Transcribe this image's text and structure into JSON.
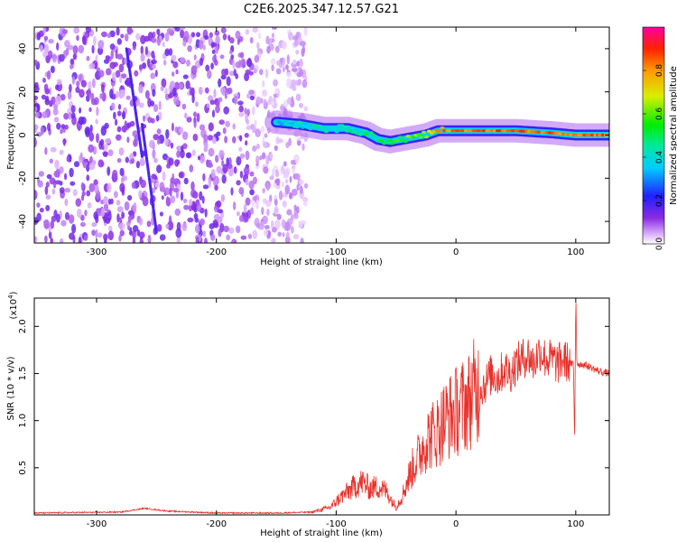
{
  "title": "C2E6.2025.347.12.57.G21",
  "chart_data": [
    {
      "type": "heatmap",
      "xlabel": "Height of straight line (km)",
      "ylabel": "Frequency (Hz)",
      "xlim": [
        -352,
        128
      ],
      "ylim": [
        -50,
        50
      ],
      "xticks": [
        -300,
        -200,
        -100,
        0,
        100
      ],
      "yticks": [
        -40,
        -20,
        0,
        20,
        40
      ],
      "colorbar": {
        "label": "Normalized spectral amplitude",
        "range": [
          0,
          1
        ],
        "ticks": [
          0.0,
          0.2,
          0.4,
          0.6,
          0.8
        ]
      },
      "noise_region_x": [
        -352,
        -150
      ],
      "signal_trace": {
        "x": [
          -150,
          -130,
          -110,
          -90,
          -75,
          -65,
          -55,
          -45,
          -35,
          -25,
          -15,
          0,
          20,
          50,
          80,
          100,
          128
        ],
        "frequency": [
          6,
          5,
          3,
          3,
          1,
          -2,
          -3,
          -2,
          -1,
          0,
          2,
          2,
          2,
          2,
          1,
          0,
          0
        ],
        "amplitude": [
          0.35,
          0.4,
          0.4,
          0.45,
          0.5,
          0.45,
          0.5,
          0.55,
          0.6,
          0.65,
          0.8,
          0.85,
          0.85,
          0.85,
          0.85,
          0.85,
          0.85
        ]
      }
    },
    {
      "type": "line",
      "xlabel": "Height of straight line (km)",
      "ylabel": "SNR (10 * v/v)",
      "y_multiplier": "(x10",
      "y_multiplier_exp": "4",
      "y_multiplier_close": ")",
      "xlim": [
        -352,
        128
      ],
      "ylim": [
        0,
        2.3
      ],
      "xticks": [
        -300,
        -200,
        -100,
        0,
        100
      ],
      "yticks": [
        0.5,
        1.0,
        1.5,
        2.0
      ],
      "series": [
        {
          "name": "SNR",
          "color": "#e8302a",
          "x": [
            -352,
            -280,
            -260,
            -240,
            -200,
            -150,
            -120,
            -105,
            -95,
            -85,
            -78,
            -72,
            -65,
            -58,
            -50,
            -45,
            -38,
            -30,
            -25,
            -20,
            -15,
            -10,
            -5,
            0,
            5,
            10,
            15,
            20,
            25,
            30,
            35,
            40,
            45,
            50,
            55,
            60,
            65,
            70,
            75,
            80,
            85,
            90,
            95,
            98,
            99,
            100,
            101,
            102,
            105,
            110,
            115,
            120,
            128
          ],
          "y": [
            0.02,
            0.03,
            0.07,
            0.04,
            0.02,
            0.02,
            0.03,
            0.08,
            0.2,
            0.3,
            0.35,
            0.28,
            0.3,
            0.25,
            0.08,
            0.2,
            0.45,
            0.65,
            0.8,
            0.85,
            0.9,
            1.0,
            1.05,
            1.1,
            1.15,
            1.2,
            1.3,
            1.35,
            1.4,
            1.5,
            1.45,
            1.55,
            1.5,
            1.6,
            1.65,
            1.7,
            1.6,
            1.75,
            1.65,
            1.65,
            1.6,
            1.65,
            1.6,
            1.6,
            0.85,
            2.25,
            1.6,
            1.6,
            1.6,
            1.58,
            1.55,
            1.52,
            1.5
          ]
        }
      ]
    }
  ]
}
